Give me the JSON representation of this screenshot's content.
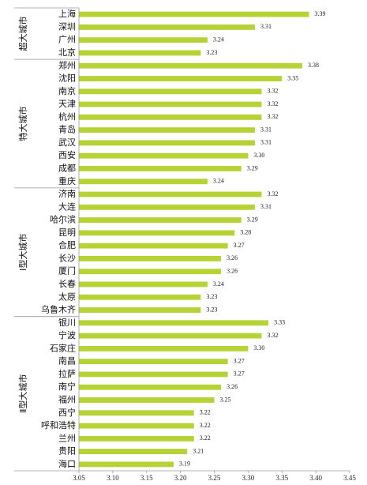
{
  "chart_data": {
    "type": "bar",
    "orientation": "horizontal",
    "bar_color": "#b5d334",
    "xlim": [
      3.05,
      3.45
    ],
    "xticks": [
      "3.05",
      "3.10",
      "3.15",
      "3.20",
      "3.25",
      "3.30",
      "3.35",
      "3.40",
      "3.45"
    ],
    "groups": [
      {
        "name": "超大城市",
        "categories": [
          "上海",
          "深圳",
          "广州",
          "北京"
        ],
        "values": [
          3.39,
          3.31,
          3.24,
          3.23
        ]
      },
      {
        "name": "特大城市",
        "categories": [
          "郑州",
          "沈阳",
          "南京",
          "天津",
          "杭州",
          "青岛",
          "武汉",
          "西安",
          "成都",
          "重庆"
        ],
        "values": [
          3.38,
          3.35,
          3.32,
          3.32,
          3.32,
          3.31,
          3.31,
          3.3,
          3.29,
          3.24
        ]
      },
      {
        "name": "Ⅰ型大城市",
        "categories": [
          "济南",
          "大连",
          "哈尔滨",
          "昆明",
          "合肥",
          "长沙",
          "厦门",
          "长春",
          "太原",
          "乌鲁木齐"
        ],
        "values": [
          3.32,
          3.31,
          3.29,
          3.28,
          3.27,
          3.26,
          3.26,
          3.24,
          3.23,
          3.23
        ]
      },
      {
        "name": "Ⅱ型大城市",
        "categories": [
          "银川",
          "宁波",
          "石家庄",
          "南昌",
          "拉萨",
          "南宁",
          "福州",
          "西宁",
          "呼和浩特",
          "兰州",
          "贵阳",
          "海口"
        ],
        "values": [
          3.33,
          3.32,
          3.3,
          3.27,
          3.27,
          3.26,
          3.25,
          3.22,
          3.22,
          3.22,
          3.21,
          3.19
        ]
      }
    ]
  }
}
